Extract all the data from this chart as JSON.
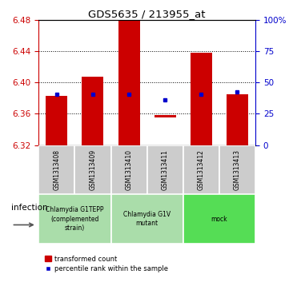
{
  "title": "GDS5635 / 213955_at",
  "samples": [
    "GSM1313408",
    "GSM1313409",
    "GSM1313410",
    "GSM1313411",
    "GSM1313412",
    "GSM1313413"
  ],
  "transformed_count_bottom": [
    6.32,
    6.32,
    6.32,
    6.355,
    6.32,
    6.32
  ],
  "transformed_count_top": [
    6.383,
    6.408,
    6.48,
    6.358,
    6.438,
    6.385
  ],
  "percentile_values": [
    6.385,
    6.385,
    6.385,
    6.378,
    6.385,
    6.388
  ],
  "ylim": [
    6.32,
    6.48
  ],
  "yticks_left": [
    6.32,
    6.36,
    6.4,
    6.44,
    6.48
  ],
  "yticks_right_labels": [
    "0",
    "25",
    "50",
    "75",
    "100%"
  ],
  "yticks_right_vals": [
    6.32,
    6.36,
    6.4,
    6.44,
    6.48
  ],
  "bar_color": "#cc0000",
  "percentile_color": "#0000cc",
  "left_axis_color": "#cc0000",
  "right_axis_color": "#0000cc",
  "infection_label": "infection",
  "bar_width": 0.6,
  "group_info": [
    {
      "label": "Chlamydia G1TEPP\n(complemented\nstrain)",
      "start": 0,
      "end": 2,
      "color": "#aaddaa"
    },
    {
      "label": "Chlamydia G1V\nmutant",
      "start": 2,
      "end": 4,
      "color": "#aaddaa"
    },
    {
      "label": "mock",
      "start": 4,
      "end": 6,
      "color": "#55dd55"
    }
  ],
  "sample_cell_color": "#cccccc",
  "legend_red_label": "transformed count",
  "legend_blue_label": "percentile rank within the sample"
}
